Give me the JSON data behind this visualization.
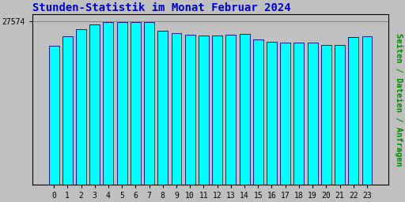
{
  "title": "Stunden-Statistik im Monat Februar 2024",
  "title_color": "#0000cc",
  "title_fontsize": 10,
  "ylabel": "Seiten / Dateien / Anfragen",
  "ylabel_color": "#008800",
  "ylabel_fontsize": 7.5,
  "ytick_label": "27574",
  "ytick_value": 27574,
  "background_color": "#c0c0c0",
  "plot_bg_color": "#c0c0c0",
  "bar_face_color": "#00ffff",
  "bar_edge_color": "#000080",
  "bar_width": 0.75,
  "categories": [
    0,
    1,
    2,
    3,
    4,
    5,
    6,
    7,
    8,
    9,
    10,
    11,
    12,
    13,
    14,
    15,
    16,
    17,
    18,
    19,
    20,
    21,
    22,
    23
  ],
  "values": [
    23500,
    25000,
    26300,
    27050,
    27500,
    27450,
    27430,
    27450,
    26050,
    25550,
    25350,
    25250,
    25200,
    25350,
    25480,
    24550,
    24150,
    24050,
    23980,
    24050,
    23650,
    23650,
    24950,
    25000
  ],
  "ylim_min": 0,
  "ylim_max": 28800,
  "hline_color": "#888888"
}
